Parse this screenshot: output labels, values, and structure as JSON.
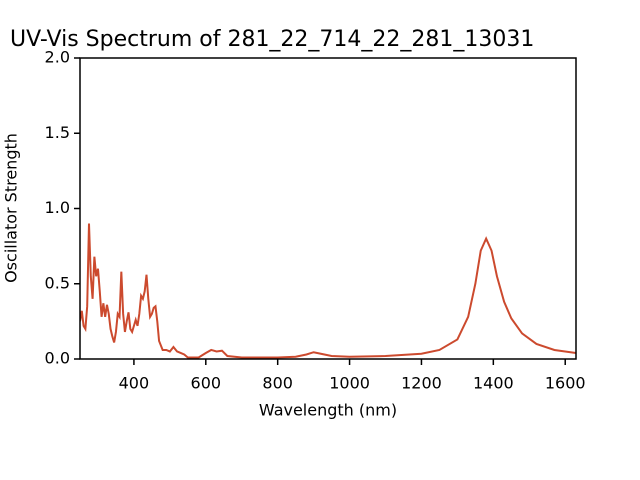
{
  "chart_data": {
    "type": "line",
    "title": "UV-Vis Spectrum of 281_22_714_22_281_13031",
    "x_label": "Wavelength (nm)",
    "y_label": "Oscillator Strength",
    "x": [
      250,
      255,
      260,
      265,
      270,
      275,
      280,
      285,
      290,
      295,
      300,
      305,
      310,
      315,
      320,
      325,
      330,
      335,
      340,
      345,
      350,
      355,
      360,
      365,
      370,
      375,
      380,
      385,
      390,
      395,
      400,
      405,
      410,
      415,
      420,
      425,
      430,
      435,
      440,
      445,
      450,
      455,
      460,
      465,
      470,
      480,
      490,
      500,
      510,
      520,
      530,
      540,
      550,
      580,
      600,
      615,
      630,
      645,
      660,
      700,
      800,
      850,
      880,
      900,
      920,
      950,
      1000,
      1100,
      1200,
      1250,
      1300,
      1330,
      1350,
      1365,
      1380,
      1395,
      1410,
      1430,
      1450,
      1480,
      1520,
      1570,
      1630
    ],
    "series": [
      {
        "color": "#cc4a2e",
        "values": [
          0.25,
          0.32,
          0.22,
          0.2,
          0.35,
          0.9,
          0.55,
          0.4,
          0.68,
          0.55,
          0.6,
          0.45,
          0.28,
          0.37,
          0.28,
          0.36,
          0.3,
          0.2,
          0.15,
          0.11,
          0.18,
          0.3,
          0.28,
          0.58,
          0.3,
          0.18,
          0.25,
          0.31,
          0.2,
          0.18,
          0.22,
          0.26,
          0.22,
          0.3,
          0.42,
          0.4,
          0.45,
          0.56,
          0.4,
          0.28,
          0.3,
          0.34,
          0.35,
          0.25,
          0.12,
          0.06,
          0.06,
          0.05,
          0.08,
          0.05,
          0.04,
          0.03,
          0.01,
          0.01,
          0.04,
          0.06,
          0.05,
          0.055,
          0.02,
          0.01,
          0.01,
          0.015,
          0.03,
          0.045,
          0.035,
          0.02,
          0.015,
          0.02,
          0.035,
          0.06,
          0.13,
          0.28,
          0.5,
          0.72,
          0.8,
          0.72,
          0.55,
          0.38,
          0.27,
          0.17,
          0.1,
          0.06,
          0.04
        ]
      }
    ],
    "xlim": [
      250,
      1630
    ],
    "ylim": [
      0,
      2
    ],
    "xticks": [
      400,
      600,
      800,
      1000,
      1200,
      1400,
      1600
    ],
    "yticks": [
      {
        "value": 0,
        "label": "0.0"
      },
      {
        "value": 0.5,
        "label": "0.5"
      },
      {
        "value": 1,
        "label": "1.0"
      },
      {
        "value": 1.5,
        "label": "1.5"
      },
      {
        "value": 2,
        "label": "2.0"
      }
    ]
  }
}
